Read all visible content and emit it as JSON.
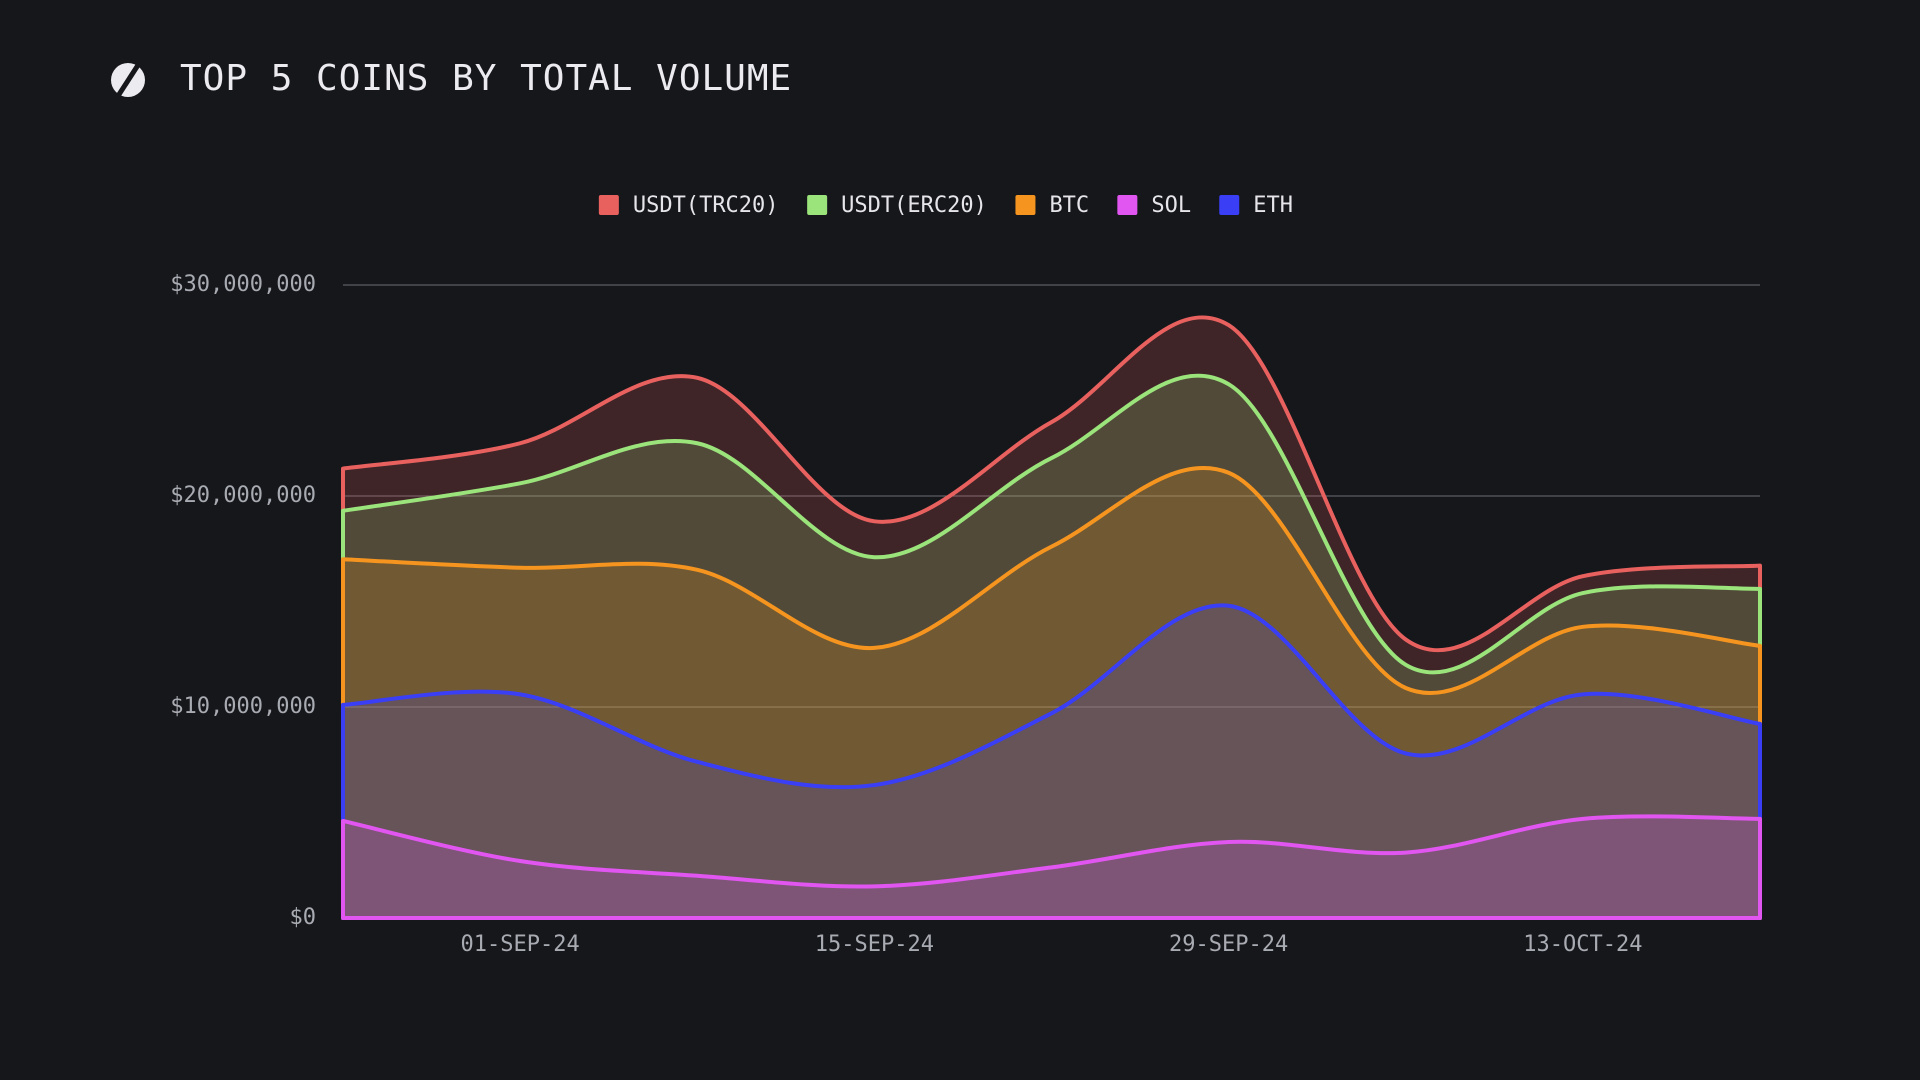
{
  "chart_data": {
    "type": "stacked_area",
    "title": "TOP 5 COINS BY TOTAL VOLUME",
    "categories": [
      null,
      "01-SEP-24",
      null,
      "15-SEP-24",
      null,
      "29-SEP-24",
      null,
      "13-OCT-24",
      null
    ],
    "series": [
      {
        "name": "USDT(TRC20)",
        "color": "#e8615f",
        "values": [
          2000000,
          1900000,
          3100000,
          1700000,
          1700000,
          2800000,
          1200000,
          800000,
          1100000
        ]
      },
      {
        "name": "USDT(ERC20)",
        "color": "#9be37b",
        "values": [
          2300000,
          4000000,
          6000000,
          4300000,
          4200000,
          4200000,
          1100000,
          1600000,
          2700000
        ]
      },
      {
        "name": "BTC",
        "color": "#f5951f",
        "values": [
          6900000,
          6000000,
          9100000,
          6500000,
          7900000,
          6300000,
          3100000,
          3200000,
          3700000
        ]
      },
      {
        "name": "SOL",
        "color": "#e155f0",
        "values": [
          4600000,
          2700000,
          2000000,
          1500000,
          2400000,
          3600000,
          3100000,
          4700000,
          4700000
        ]
      },
      {
        "name": "ETH",
        "color": "#3a3ff5",
        "values": [
          5500000,
          7900000,
          5400000,
          4800000,
          7300000,
          11200000,
          4700000,
          5900000,
          4500000
        ]
      }
    ],
    "ylim": [
      0,
      30000000
    ],
    "yticks": [
      {
        "value": 0,
        "label": "$0"
      },
      {
        "value": 10000000,
        "label": "$10,000,000"
      },
      {
        "value": 20000000,
        "label": "$20,000,000"
      },
      {
        "value": 30000000,
        "label": "$30,000,000"
      }
    ],
    "grid": true,
    "legend": "top"
  }
}
